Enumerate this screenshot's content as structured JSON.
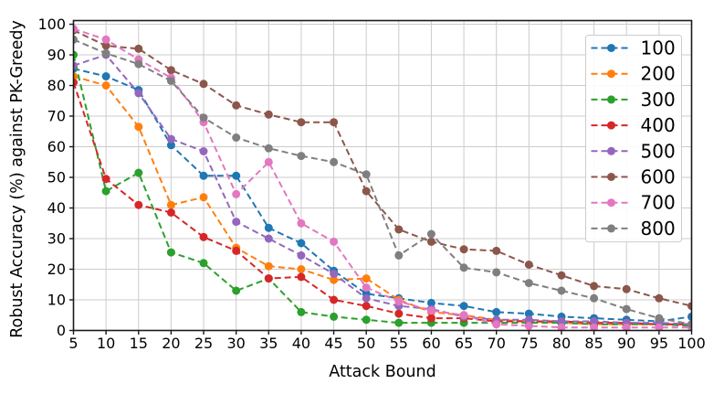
{
  "figure": {
    "background": "#ffffff",
    "text_color": "#000000",
    "grid_color": "#cccccc",
    "spine_color": "#1a1a1a"
  },
  "chart_data": {
    "type": "line",
    "title": "",
    "xlabel": "Attack Bound",
    "ylabel": "Robust Accuracy (%) against PK-Greedy",
    "xlim": [
      5,
      100
    ],
    "ylim": [
      0,
      101.2
    ],
    "xticks": [
      5,
      10,
      15,
      20,
      25,
      30,
      35,
      40,
      45,
      50,
      55,
      60,
      65,
      70,
      75,
      80,
      85,
      90,
      95,
      100
    ],
    "yticks": [
      0,
      10,
      20,
      30,
      40,
      50,
      60,
      70,
      80,
      90,
      100
    ],
    "grid": true,
    "line_style": "dashed",
    "marker": "circle",
    "legend_position": "upper right",
    "x": [
      5,
      10,
      15,
      20,
      25,
      30,
      35,
      40,
      45,
      50,
      55,
      60,
      65,
      70,
      75,
      80,
      85,
      90,
      95,
      100
    ],
    "series": [
      {
        "name": "100",
        "color": "#1f77b4",
        "values": [
          85.5,
          83,
          78.5,
          60.5,
          50.5,
          50.5,
          33.5,
          28.5,
          19.5,
          12,
          10.5,
          9,
          8,
          6,
          5.5,
          4.5,
          4,
          3.5,
          3,
          4.5
        ]
      },
      {
        "name": "200",
        "color": "#ff7f0e",
        "values": [
          83,
          80,
          66.5,
          41,
          43.5,
          27,
          21,
          20,
          16.5,
          17,
          10,
          6,
          5,
          3.5,
          3,
          2.5,
          2,
          2,
          2,
          2
        ]
      },
      {
        "name": "300",
        "color": "#2ca02c",
        "values": [
          90,
          45.5,
          51.5,
          25.5,
          22,
          13,
          17,
          6,
          4.5,
          3.5,
          2.5,
          2.5,
          2.5,
          2.5,
          2.5,
          2.5,
          2,
          2,
          2,
          1.5
        ]
      },
      {
        "name": "400",
        "color": "#d62728",
        "values": [
          81,
          49.5,
          41,
          38.5,
          30.5,
          26,
          17,
          17.5,
          10,
          8,
          5.5,
          4,
          4,
          3,
          3,
          3,
          2.5,
          2.5,
          2,
          2
        ]
      },
      {
        "name": "500",
        "color": "#9467bd",
        "values": [
          86.5,
          90,
          77.5,
          62.5,
          58.5,
          35.5,
          30,
          24.5,
          18.5,
          10.5,
          8,
          7,
          4.5,
          3.5,
          3.5,
          3,
          3,
          2.5,
          2.5,
          2
        ]
      },
      {
        "name": "600",
        "color": "#8c564b",
        "values": [
          98,
          93,
          92,
          85,
          80.5,
          73.5,
          70.5,
          68,
          68,
          45.5,
          33,
          29,
          26.5,
          26,
          21.5,
          18,
          14.5,
          13.5,
          10.5,
          8
        ]
      },
      {
        "name": "700",
        "color": "#e377c2",
        "values": [
          98.5,
          95,
          88.5,
          82.5,
          68,
          44.5,
          55,
          35,
          29,
          14,
          9.5,
          6.5,
          5,
          2,
          1.5,
          1,
          1,
          1,
          1,
          1
        ]
      },
      {
        "name": "800",
        "color": "#7f7f7f",
        "values": [
          95,
          90.5,
          87,
          81.5,
          69.5,
          63,
          59.5,
          57,
          55,
          51,
          24.5,
          31.5,
          20.5,
          19,
          15.5,
          13,
          10.5,
          7,
          4,
          2
        ]
      }
    ]
  }
}
